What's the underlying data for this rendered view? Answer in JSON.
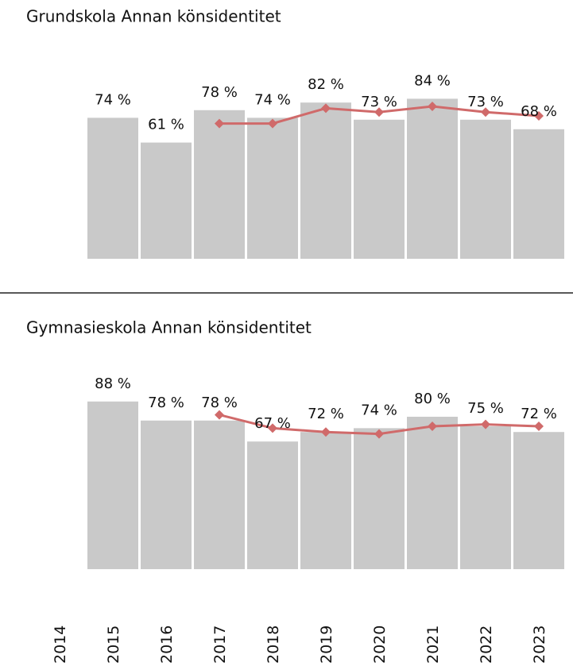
{
  "chart_data": [
    {
      "type": "bar",
      "title": "Grundskola Annan könsidentitet",
      "ylim": [
        0,
        100
      ],
      "series": [
        {
          "type": "bar",
          "color": "#c9c9c9",
          "values": [
            null,
            74,
            61,
            78,
            74,
            82,
            73,
            84,
            73,
            68
          ],
          "value_labels": [
            null,
            "74 %",
            "61 %",
            "78 %",
            "74 %",
            "82 %",
            "73 %",
            "84 %",
            "73 %",
            "68 %"
          ]
        },
        {
          "type": "line",
          "color": "#d06a6a",
          "values": [
            null,
            null,
            null,
            71,
            71,
            79,
            77,
            80,
            77,
            75
          ]
        }
      ]
    },
    {
      "type": "bar",
      "title": "Gymnasieskola Annan könsidentitet",
      "ylim": [
        0,
        100
      ],
      "categories": [
        "2014",
        "2015",
        "2016",
        "2017",
        "2018",
        "2019",
        "2020",
        "2021",
        "2022",
        "2023"
      ],
      "series": [
        {
          "type": "bar",
          "color": "#c9c9c9",
          "values": [
            null,
            88,
            78,
            78,
            67,
            72,
            74,
            80,
            75,
            72
          ],
          "value_labels": [
            null,
            "88 %",
            "78 %",
            "78 %",
            "67 %",
            "72 %",
            "74 %",
            "80 %",
            "75 %",
            "72 %"
          ]
        },
        {
          "type": "line",
          "color": "#d06a6a",
          "values": [
            null,
            null,
            null,
            81,
            74,
            72,
            71,
            75,
            76,
            75
          ]
        }
      ]
    }
  ]
}
